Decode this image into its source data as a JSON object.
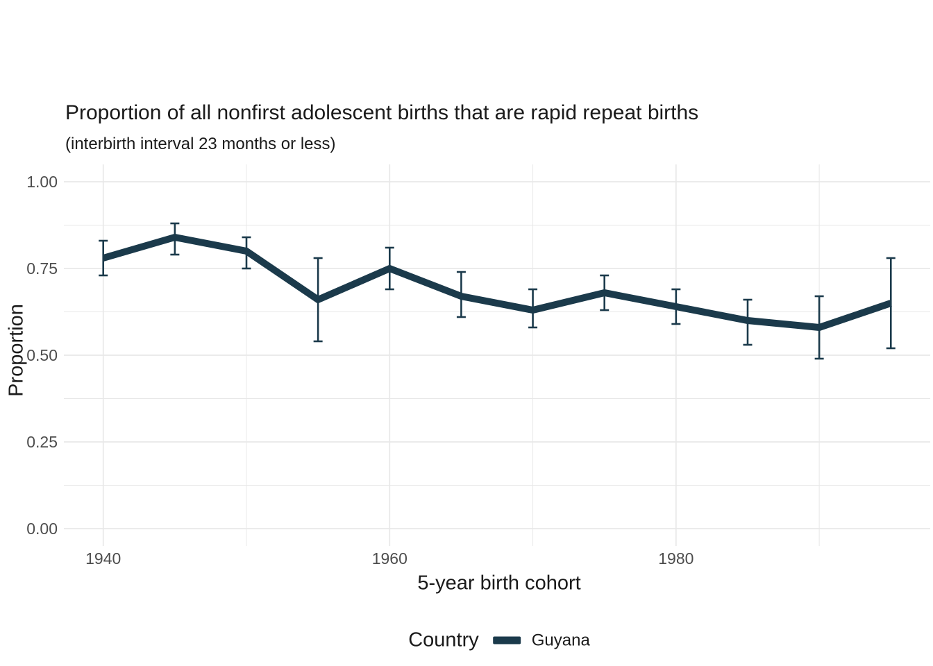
{
  "chart_data": {
    "type": "line",
    "title": "Proportion of all nonfirst adolescent births that are rapid repeat births",
    "subtitle": "(interbirth interval 23 months or less)",
    "xlabel": "5-year birth cohort",
    "ylabel": "Proportion",
    "legend": {
      "title": "Country",
      "position": "bottom",
      "entries": [
        {
          "label": "Guyana",
          "color": "#1b3a4b"
        }
      ]
    },
    "x": [
      1940,
      1945,
      1950,
      1955,
      1960,
      1965,
      1970,
      1975,
      1980,
      1985,
      1990,
      1995
    ],
    "series": [
      {
        "name": "Guyana",
        "values": [
          0.78,
          0.84,
          0.8,
          0.66,
          0.75,
          0.67,
          0.63,
          0.68,
          0.64,
          0.6,
          0.58,
          0.65
        ],
        "ci_low": [
          0.73,
          0.79,
          0.75,
          0.54,
          0.69,
          0.61,
          0.58,
          0.63,
          0.59,
          0.53,
          0.49,
          0.52
        ],
        "ci_high": [
          0.83,
          0.88,
          0.84,
          0.78,
          0.81,
          0.74,
          0.69,
          0.73,
          0.69,
          0.66,
          0.67,
          0.78
        ]
      }
    ],
    "x_ticks": {
      "major": [
        1940,
        1960,
        1980
      ],
      "labels": [
        "1940",
        "1960",
        "1980"
      ],
      "minor": [
        1950,
        1970,
        1990
      ]
    },
    "y_ticks": {
      "major": [
        0,
        0.25,
        0.5,
        0.75,
        1.0
      ],
      "labels": [
        "0.00",
        "0.25",
        "0.50",
        "0.75",
        "1.00"
      ],
      "minor": [
        0.125,
        0.375,
        0.625,
        0.875
      ]
    },
    "xlim": [
      1937.25,
      1997.75
    ],
    "ylim": [
      -0.05,
      1.05
    ],
    "grid": true,
    "colors": {
      "line": "#1b3a4b",
      "grid": "#e8e8e8",
      "tick_label": "#4d4d4d",
      "text": "#1a1a1a",
      "background": "#ffffff"
    }
  }
}
